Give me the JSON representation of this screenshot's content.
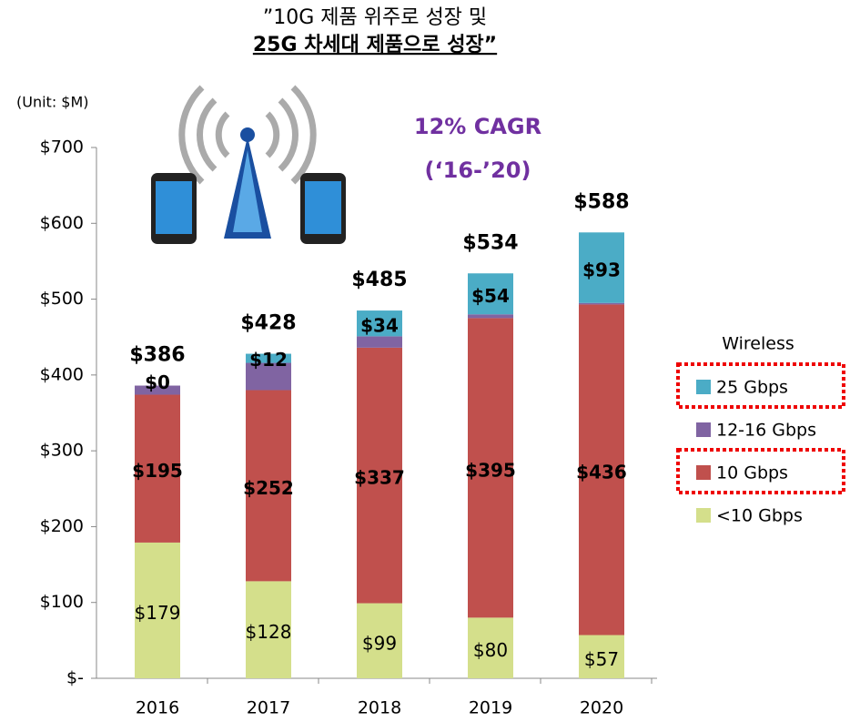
{
  "chart_data": {
    "type": "stacked_bar",
    "title": [
      "”10G 제품 위주로 성장 및",
      "25G 차세대 제품으로 성장”"
    ],
    "unit_label": "(Unit: $M)",
    "annotation": [
      "12% CAGR",
      "(‘16-’20)"
    ],
    "categories": [
      "2016",
      "2017",
      "2018",
      "2019",
      "2020"
    ],
    "legend_title": "Wireless",
    "series": [
      {
        "name": "<10 Gbps",
        "color": "#d4df8b",
        "values": [
          179,
          128,
          99,
          80,
          57
        ],
        "value_labels": [
          "$179",
          "$128",
          "$99",
          "$80",
          "$57"
        ]
      },
      {
        "name": "10 Gbps",
        "color": "#c0504d",
        "values": [
          195,
          252,
          337,
          395,
          436
        ],
        "value_labels": [
          "$195",
          "$252",
          "$337",
          "$395",
          "$436"
        ],
        "highlight": true
      },
      {
        "name": "12-16 Gbps",
        "color": "#8064a2",
        "values": [
          12,
          36,
          15,
          5,
          2
        ]
      },
      {
        "name": "25 Gbps",
        "color": "#4bacc6",
        "values": [
          0,
          12,
          34,
          54,
          93
        ],
        "value_labels": [
          "$0",
          "$12",
          "$34",
          "$54",
          "$93"
        ],
        "highlight": true
      }
    ],
    "totals": [
      386,
      428,
      485,
      534,
      588
    ],
    "total_labels": [
      "$386",
      "$428",
      "$485",
      "$534",
      "$588"
    ],
    "ylim": [
      0,
      700
    ],
    "yticks": [
      {
        "value": 0,
        "label": "$-"
      },
      {
        "value": 100,
        "label": "$100"
      },
      {
        "value": 200,
        "label": "$200"
      },
      {
        "value": 300,
        "label": "$300"
      },
      {
        "value": 400,
        "label": "$400"
      },
      {
        "value": 500,
        "label": "$500"
      },
      {
        "value": 600,
        "label": "$600"
      },
      {
        "value": 700,
        "label": "$700"
      }
    ],
    "legend_position": "right"
  }
}
